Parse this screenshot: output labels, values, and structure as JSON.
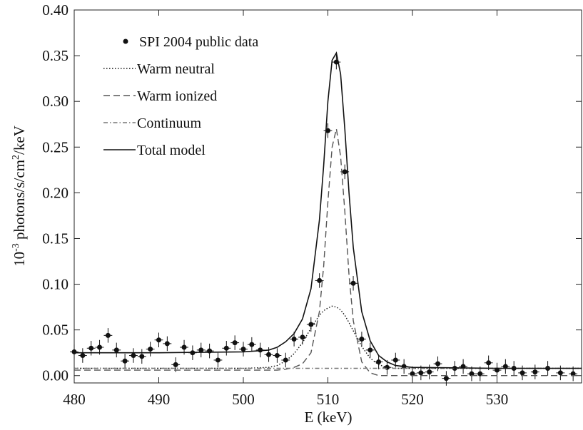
{
  "chart_data": {
    "type": "scatter",
    "xlabel": "E (keV)",
    "ylabel": [
      "10",
      "-3",
      " photons/s/cm",
      "2",
      "/keV"
    ],
    "xlim": [
      480,
      540
    ],
    "ylim": [
      -0.008,
      0.4
    ],
    "xticks": [
      480,
      490,
      500,
      510,
      520,
      530
    ],
    "yticks": [
      {
        "value": 0,
        "label": "0.00"
      },
      0.05,
      {
        "value": 0.1,
        "label": "0.10"
      },
      0.15,
      {
        "value": 0.2,
        "label": "0.20"
      },
      0.25,
      {
        "value": 0.3,
        "label": "0.30"
      },
      0.35,
      {
        "value": 0.4,
        "label": "0.40"
      }
    ],
    "series": [
      {
        "name": "SPI 2004 public data",
        "type": "scatter",
        "color": "#111111",
        "xerr": 0.5,
        "yerr": 0.008,
        "x": [
          480,
          481,
          482,
          483,
          484,
          485,
          486,
          487,
          488,
          489,
          490,
          491,
          492,
          493,
          494,
          495,
          496,
          497,
          498,
          499,
          500,
          501,
          502,
          503,
          504,
          505,
          506,
          507,
          508,
          509,
          510,
          511,
          512,
          513,
          514,
          515,
          516,
          517,
          518,
          519,
          520,
          521,
          522,
          523,
          524,
          525,
          526,
          527,
          528,
          529,
          530,
          531,
          532,
          533,
          534.5,
          536,
          537.5,
          539
        ],
        "values": [
          0.026,
          0.022,
          0.03,
          0.031,
          0.044,
          0.028,
          0.016,
          0.022,
          0.021,
          0.029,
          0.039,
          0.035,
          0.012,
          0.031,
          0.025,
          0.028,
          0.027,
          0.017,
          0.03,
          0.036,
          0.029,
          0.034,
          0.028,
          0.023,
          0.022,
          0.017,
          0.04,
          0.042,
          0.056,
          0.104,
          0.268,
          0.343,
          0.223,
          0.101,
          0.04,
          0.028,
          0.015,
          0.009,
          0.017,
          0.01,
          0.002,
          0.003,
          0.004,
          0.013,
          -0.003,
          0.008,
          0.01,
          0.002,
          0.002,
          0.014,
          0.006,
          0.01,
          0.008,
          0.003,
          0.004,
          0.008,
          0.003,
          0.002
        ]
      },
      {
        "name": "Warm neutral",
        "type": "line",
        "dash": "dotted",
        "color": "#111111",
        "x": [
          480,
          490,
          500,
          503,
          504,
          505,
          506,
          507,
          508,
          509,
          509.5,
          510,
          510.5,
          511,
          511.5,
          512,
          512.5,
          513,
          514,
          515,
          516,
          517,
          518,
          520,
          530,
          540
        ],
        "values": [
          0.008,
          0.008,
          0.008,
          0.009,
          0.011,
          0.016,
          0.024,
          0.036,
          0.052,
          0.066,
          0.071,
          0.074,
          0.076,
          0.075,
          0.072,
          0.066,
          0.058,
          0.049,
          0.032,
          0.019,
          0.012,
          0.009,
          0.008,
          0.008,
          0.008,
          0.008
        ]
      },
      {
        "name": "Warm ionized",
        "type": "line",
        "dash": "dashed",
        "color": "#555555",
        "x": [
          480,
          490,
          500,
          503,
          504,
          505,
          506,
          507,
          508,
          509,
          509.5,
          510,
          510.5,
          511,
          511.5,
          512,
          512.5,
          513,
          514,
          515,
          516,
          517,
          518,
          520,
          530,
          540
        ],
        "values": [
          0.006,
          0.006,
          0.006,
          0.006,
          0.006,
          0.007,
          0.009,
          0.013,
          0.025,
          0.07,
          0.12,
          0.19,
          0.25,
          0.27,
          0.24,
          0.18,
          0.11,
          0.06,
          0.015,
          0.003,
          0,
          0,
          0,
          0,
          0,
          0
        ]
      },
      {
        "name": "Continuum",
        "type": "line",
        "dash": "dashdot",
        "color": "#777777",
        "x": [
          480,
          540
        ],
        "values": [
          0.008,
          0.008
        ]
      },
      {
        "name": "Total model",
        "type": "line",
        "dash": "solid",
        "color": "#111111",
        "x": [
          480,
          490,
          500,
          503,
          504,
          505,
          506,
          507,
          508,
          509,
          509.5,
          510,
          510.5,
          511,
          511.5,
          512,
          512.5,
          513,
          514,
          515,
          516,
          517,
          518,
          520,
          530,
          540
        ],
        "values": [
          0.025,
          0.025,
          0.026,
          0.028,
          0.031,
          0.037,
          0.046,
          0.062,
          0.095,
          0.17,
          0.23,
          0.3,
          0.345,
          0.353,
          0.33,
          0.27,
          0.2,
          0.14,
          0.07,
          0.038,
          0.022,
          0.015,
          0.011,
          0.009,
          0.008,
          0.008
        ]
      }
    ]
  }
}
